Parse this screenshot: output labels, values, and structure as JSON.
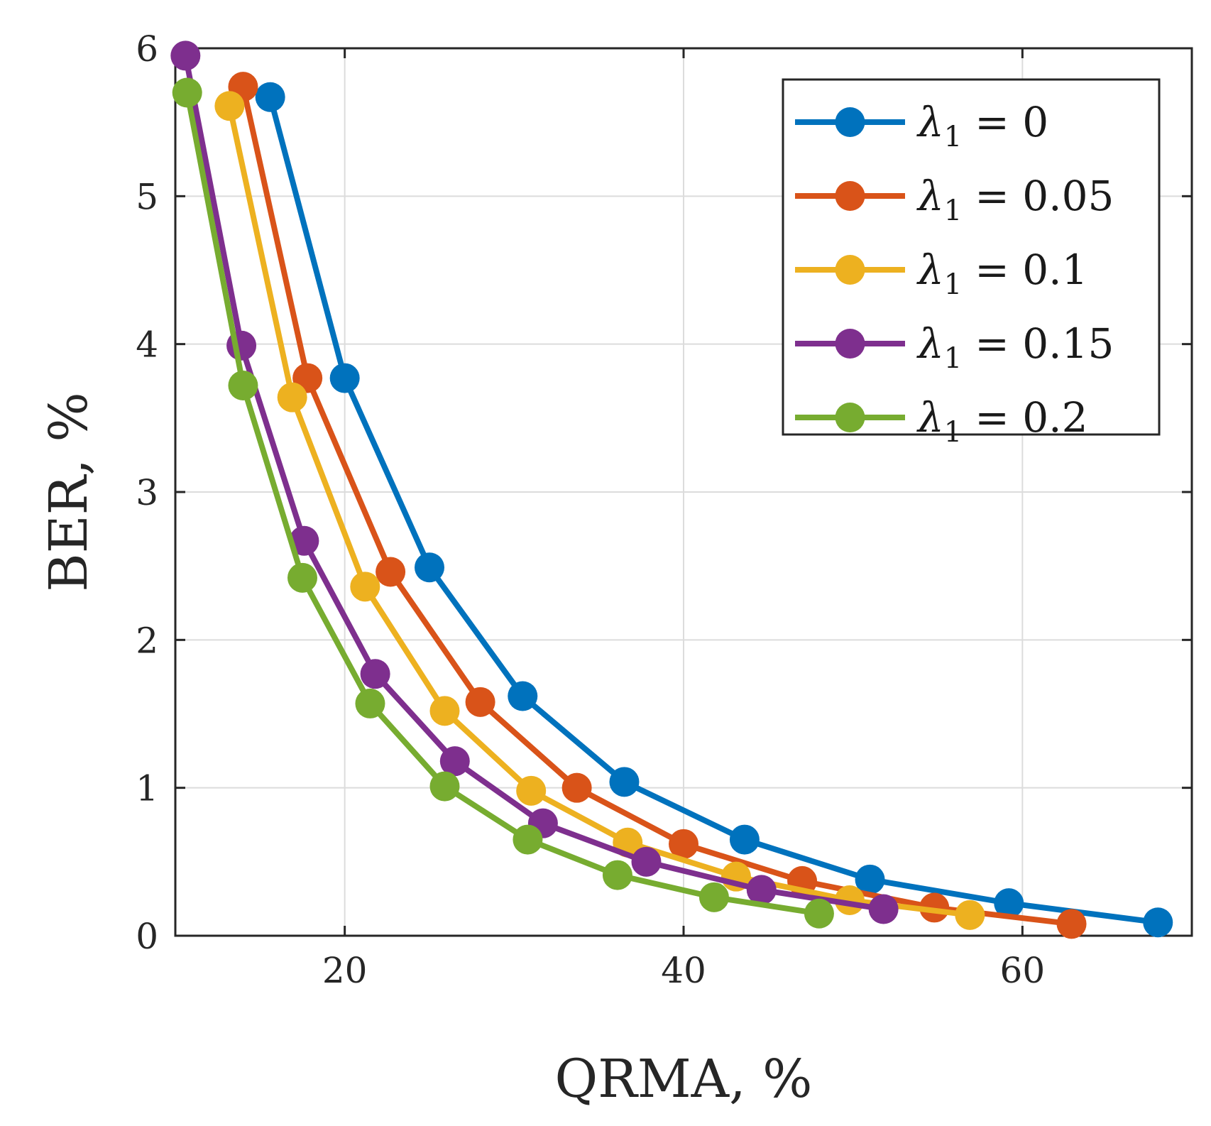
{
  "chart_data": {
    "type": "line",
    "title": "",
    "xlabel": "QRMA, %",
    "ylabel": "BER, %",
    "xlim": [
      10,
      70
    ],
    "ylim": [
      0,
      6
    ],
    "xticks": [
      20,
      40,
      60
    ],
    "yticks": [
      0,
      1,
      2,
      3,
      4,
      5,
      6
    ],
    "xtick_labels": [
      "20",
      "40",
      "60"
    ],
    "ytick_labels": [
      "0",
      "1",
      "2",
      "3",
      "4",
      "5",
      "6"
    ],
    "grid": true,
    "legend_position": "top-right",
    "series": [
      {
        "name": "λ1 = 0",
        "legend_symbol": "λ",
        "legend_subscript": "1",
        "legend_value": "= 0",
        "color": "#0072BD",
        "x": [
          15.6,
          20.0,
          25.0,
          30.5,
          36.5,
          43.6,
          51.0,
          59.2,
          68.0
        ],
        "y": [
          5.67,
          3.77,
          2.49,
          1.62,
          1.04,
          0.65,
          0.38,
          0.22,
          0.09
        ]
      },
      {
        "name": "λ1 = 0.05",
        "legend_symbol": "λ",
        "legend_subscript": "1",
        "legend_value": "= 0.05",
        "color": "#D95319",
        "x": [
          14.0,
          17.8,
          22.7,
          28.0,
          33.7,
          40.0,
          47.0,
          54.8,
          62.9
        ],
        "y": [
          5.74,
          3.77,
          2.46,
          1.58,
          1.0,
          0.62,
          0.37,
          0.19,
          0.08
        ]
      },
      {
        "name": "λ1 = 0.1",
        "legend_symbol": "λ",
        "legend_subscript": "1",
        "legend_value": "= 0.1",
        "color": "#EDB120",
        "x": [
          13.2,
          16.9,
          21.2,
          25.9,
          31.0,
          36.7,
          43.1,
          49.8,
          56.9
        ],
        "y": [
          5.61,
          3.64,
          2.36,
          1.52,
          0.98,
          0.63,
          0.4,
          0.24,
          0.14
        ]
      },
      {
        "name": "λ1 = 0.15",
        "legend_symbol": "λ",
        "legend_subscript": "1",
        "legend_value": "= 0.15",
        "color": "#7E2F8E",
        "x": [
          10.6,
          13.9,
          17.6,
          21.8,
          26.5,
          31.7,
          37.8,
          44.6,
          51.8
        ],
        "y": [
          5.95,
          3.99,
          2.67,
          1.77,
          1.18,
          0.76,
          0.5,
          0.31,
          0.18
        ]
      },
      {
        "name": "λ1 = 0.2",
        "legend_symbol": "λ",
        "legend_subscript": "1",
        "legend_value": "= 0.2",
        "color": "#77AC30",
        "x": [
          10.7,
          14.0,
          17.5,
          21.5,
          25.9,
          30.8,
          36.1,
          41.8,
          48.0
        ],
        "y": [
          5.7,
          3.72,
          2.42,
          1.57,
          1.01,
          0.65,
          0.41,
          0.26,
          0.15
        ]
      }
    ]
  }
}
